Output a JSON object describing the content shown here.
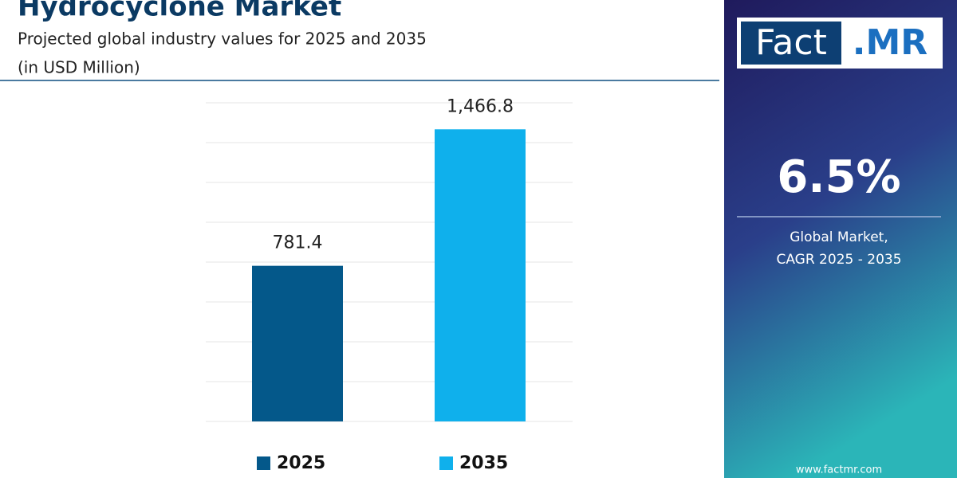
{
  "chart_data": {
    "type": "bar",
    "title": "Hydrocyclone Market",
    "subtitle": "Projected global industry values for 2025 and 2035",
    "unit_label": "(in USD Million)",
    "categories": [
      "2025",
      "2035"
    ],
    "values": [
      781.4,
      1466.8
    ],
    "value_labels": [
      "781.4",
      "1,466.8"
    ],
    "colors": [
      "#04588a",
      "#0fb0ec"
    ],
    "ylim": [
      0,
      1600
    ],
    "yticks": [
      0,
      200,
      400,
      600,
      800,
      1000,
      1200,
      1400,
      1600
    ],
    "grid": true,
    "legend": "bottom"
  },
  "sidebar": {
    "logo_left": "Fact",
    "logo_right": ".MR",
    "cagr": "6.5%",
    "cagr_line1": "Global Market,",
    "cagr_line2": "CAGR 2025 - 2035",
    "website": "www.factmr.com"
  }
}
